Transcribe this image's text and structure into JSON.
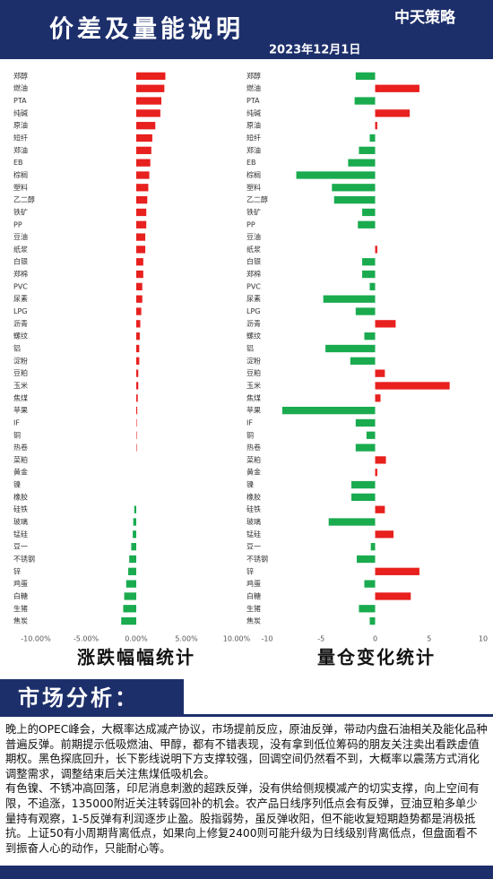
{
  "header": {
    "title": "价差及量能说明",
    "date": "2023年12月1日",
    "logo": "中天策略"
  },
  "chart_data": [
    {
      "type": "bar",
      "orientation": "horizontal",
      "title": "涨跌幅幅统计",
      "categories": [
        "郑醇",
        "燃油",
        "PTA",
        "纯碱",
        "原油",
        "短纤",
        "郑油",
        "EB",
        "棕榈",
        "塑料",
        "乙二醇",
        "铁矿",
        "PP",
        "豆油",
        "纸浆",
        "白银",
        "郑棉",
        "PVC",
        "尿素",
        "LPG",
        "沥青",
        "螺纹",
        "铝",
        "淀粉",
        "豆粕",
        "玉米",
        "焦煤",
        "苹果",
        "IF",
        "铜",
        "热卷",
        "菜粕",
        "黄金",
        "镍",
        "橡胶",
        "硅铁",
        "玻璃",
        "锰硅",
        "豆一",
        "不锈钢",
        "锌",
        "鸡蛋",
        "白糖",
        "生猪",
        "焦炭"
      ],
      "values": [
        2.9,
        2.8,
        2.5,
        2.4,
        1.9,
        1.6,
        1.5,
        1.4,
        1.3,
        1.2,
        1.1,
        1.0,
        1.0,
        0.9,
        0.9,
        0.7,
        0.7,
        0.6,
        0.6,
        0.5,
        0.4,
        0.35,
        0.3,
        0.3,
        0.2,
        0.2,
        0.15,
        0.1,
        0.05,
        0.05,
        0.05,
        0,
        0,
        0,
        0,
        -0.2,
        -0.3,
        -0.35,
        -0.5,
        -0.7,
        -0.8,
        -1.0,
        -1.2,
        -1.3,
        -1.5
      ],
      "xlim": [
        -10,
        10
      ],
      "xticks": [
        {
          "value": -10,
          "label": "-10.00%"
        },
        {
          "value": -5,
          "label": "-5.00%"
        },
        {
          "value": 0,
          "label": "0.00%"
        },
        {
          "value": 5,
          "label": "5.00%"
        },
        {
          "value": 10,
          "label": "10.00%"
        }
      ],
      "positive_color": "#e8201e",
      "negative_color": "#1aab4f"
    },
    {
      "type": "bar",
      "orientation": "horizontal",
      "title": "量仓变化统计",
      "categories": [
        "郑醇",
        "燃油",
        "PTA",
        "纯碱",
        "原油",
        "短纤",
        "郑油",
        "EB",
        "棕榈",
        "塑料",
        "乙二醇",
        "铁矿",
        "PP",
        "豆油",
        "纸浆",
        "白银",
        "郑棉",
        "PVC",
        "尿素",
        "LPG",
        "沥青",
        "螺纹",
        "铝",
        "淀粉",
        "豆粕",
        "玉米",
        "焦煤",
        "苹果",
        "IF",
        "铜",
        "热卷",
        "菜粕",
        "黄金",
        "镍",
        "橡胶",
        "硅铁",
        "玻璃",
        "锰硅",
        "豆一",
        "不锈钢",
        "锌",
        "鸡蛋",
        "白糖",
        "生猪",
        "焦炭"
      ],
      "values": [
        -1.8,
        4.1,
        -1.9,
        3.2,
        0.2,
        -0.5,
        -1.5,
        -2.5,
        -7.3,
        -4.0,
        -3.8,
        -1.2,
        -1.6,
        0,
        0.2,
        -1.2,
        -1.2,
        -0.5,
        -4.8,
        -1.8,
        1.9,
        -1.0,
        -4.6,
        -2.3,
        0.9,
        6.9,
        0.5,
        -8.6,
        -1.8,
        -0.8,
        -1.8,
        1.0,
        0.2,
        -2.2,
        -2.2,
        0.9,
        -4.3,
        1.7,
        -0.4,
        -1.7,
        4.1,
        -1.0,
        3.3,
        -1.5,
        -0.5
      ],
      "xlim": [
        -10,
        10
      ],
      "xticks": [
        -10,
        -5,
        0,
        5,
        10
      ],
      "positive_color": "#e8201e",
      "negative_color": "#1aab4f"
    }
  ],
  "analysis": {
    "title": "市场分析：",
    "paragraphs": [
      "晚上的OPEC峰会，大概率达成减产协议，市场提前反应，原油反弹，带动内盘石油相关及能化品种普遍反弹。前期提示低吸燃油、甲醇，都有不错表现，没有拿到低位筹码的朋友关注卖出看跌虚值期权。黑色探底回升，长下影线说明下方支撑较强，回调空间仍然看不到，大概率以震荡方式消化调整需求，调整结束后关注焦煤低吸机会。",
      "有色镍、不锈冲高回落，印尼消息刺激的超跌反弹，没有供给侧规模减产的切实支撑，向上空间有限，不追涨，135000附近关注转弱回补的机会。农产品日线序列低点会有反弹，豆油豆粕多单少量持有观察，1-5反弹有利润逐步止盈。股指弱势，虽反弹收阳，但不能收复短期趋势都是消极抵抗。上证50有小周期背离低点，如果向上修复2400则可能升级为日线级别背离低点，但盘面看不到振奋人心的动作，只能耐心等。"
    ]
  }
}
